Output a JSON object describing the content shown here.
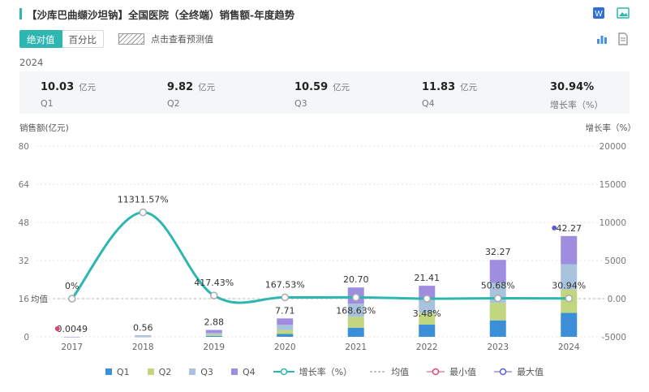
{
  "header": {
    "title": "【沙库巴曲缬沙坦钠】全国医院（全终端）销售额-年度趋势"
  },
  "toolbar": {
    "abs_label": "绝对值",
    "pct_label": "百分比",
    "forecast_label": "点击查看预测值"
  },
  "icons": [
    "word-export-icon",
    "image-export-icon",
    "bar-chart-icon",
    "document-icon"
  ],
  "summary": {
    "year": "2024",
    "items": [
      {
        "value": "10.03",
        "unit": "亿元",
        "label": "Q1"
      },
      {
        "value": "9.82",
        "unit": "亿元",
        "label": "Q2"
      },
      {
        "value": "10.59",
        "unit": "亿元",
        "label": "Q3"
      },
      {
        "value": "11.83",
        "unit": "亿元",
        "label": "Q4"
      },
      {
        "value": "30.94%",
        "unit": "",
        "label": "增长率（%）"
      }
    ]
  },
  "colors": {
    "accent": "#2db7b0",
    "q1": "#3b8fd9",
    "q2": "#c2d67f",
    "q3": "#a9c3dc",
    "q4": "#9f8de0",
    "growth": "#2db7b0",
    "min": "#d9477a",
    "max": "#5b5bd6"
  },
  "chart_data": {
    "type": "bar",
    "stacked": true,
    "categories": [
      "2017",
      "2018",
      "2019",
      "2020",
      "2021",
      "2022",
      "2023",
      "2024"
    ],
    "series": [
      {
        "name": "Q1",
        "values": [
          0.0,
          0.1,
          0.4,
          1.2,
          3.8,
          5.1,
          6.9,
          10.03
        ]
      },
      {
        "name": "Q2",
        "values": [
          0.0,
          0.1,
          0.5,
          1.6,
          4.6,
          4.9,
          7.3,
          9.82
        ]
      },
      {
        "name": "Q3",
        "values": [
          0.0,
          0.15,
          0.8,
          2.2,
          5.5,
          5.4,
          8.4,
          10.59
        ]
      },
      {
        "name": "Q4",
        "values": [
          0.0049,
          0.21,
          1.18,
          2.71,
          6.8,
          6.01,
          9.67,
          11.83
        ]
      }
    ],
    "totals": [
      0.0049,
      0.56,
      2.88,
      7.71,
      20.7,
      21.41,
      32.27,
      42.27
    ],
    "total_labels": [
      "0.0049",
      "0.56",
      "2.88",
      "7.71",
      "20.70",
      "21.41",
      "32.27",
      "42.27"
    ],
    "growth": {
      "name": "增长率（%）",
      "values": [
        0,
        11311.57,
        417.43,
        167.53,
        168.63,
        3.48,
        50.68,
        30.94
      ],
      "labels": [
        "0%",
        "11311.57%",
        "417.43%",
        "167.53%",
        "168.63%",
        "3.48%",
        "50.68%",
        "30.94%"
      ]
    },
    "mean_label": "均值",
    "mean_value": 16,
    "ylabel_left": "销售额(亿元)",
    "ylabel_right": "增长率（%）",
    "ylim_left": [
      0,
      80
    ],
    "yticks_left": [
      "0",
      "16",
      "32",
      "48",
      "64",
      "80"
    ],
    "ylim_right": [
      -5000,
      20000
    ],
    "yticks_right": [
      "-5000",
      "0.00",
      "5000",
      "10000",
      "15000",
      "20000"
    ],
    "grid": true,
    "legend_position": "bottom",
    "legend": [
      "Q1",
      "Q2",
      "Q3",
      "Q4",
      "增长率（%）",
      "均值",
      "最小值",
      "最大值"
    ]
  }
}
